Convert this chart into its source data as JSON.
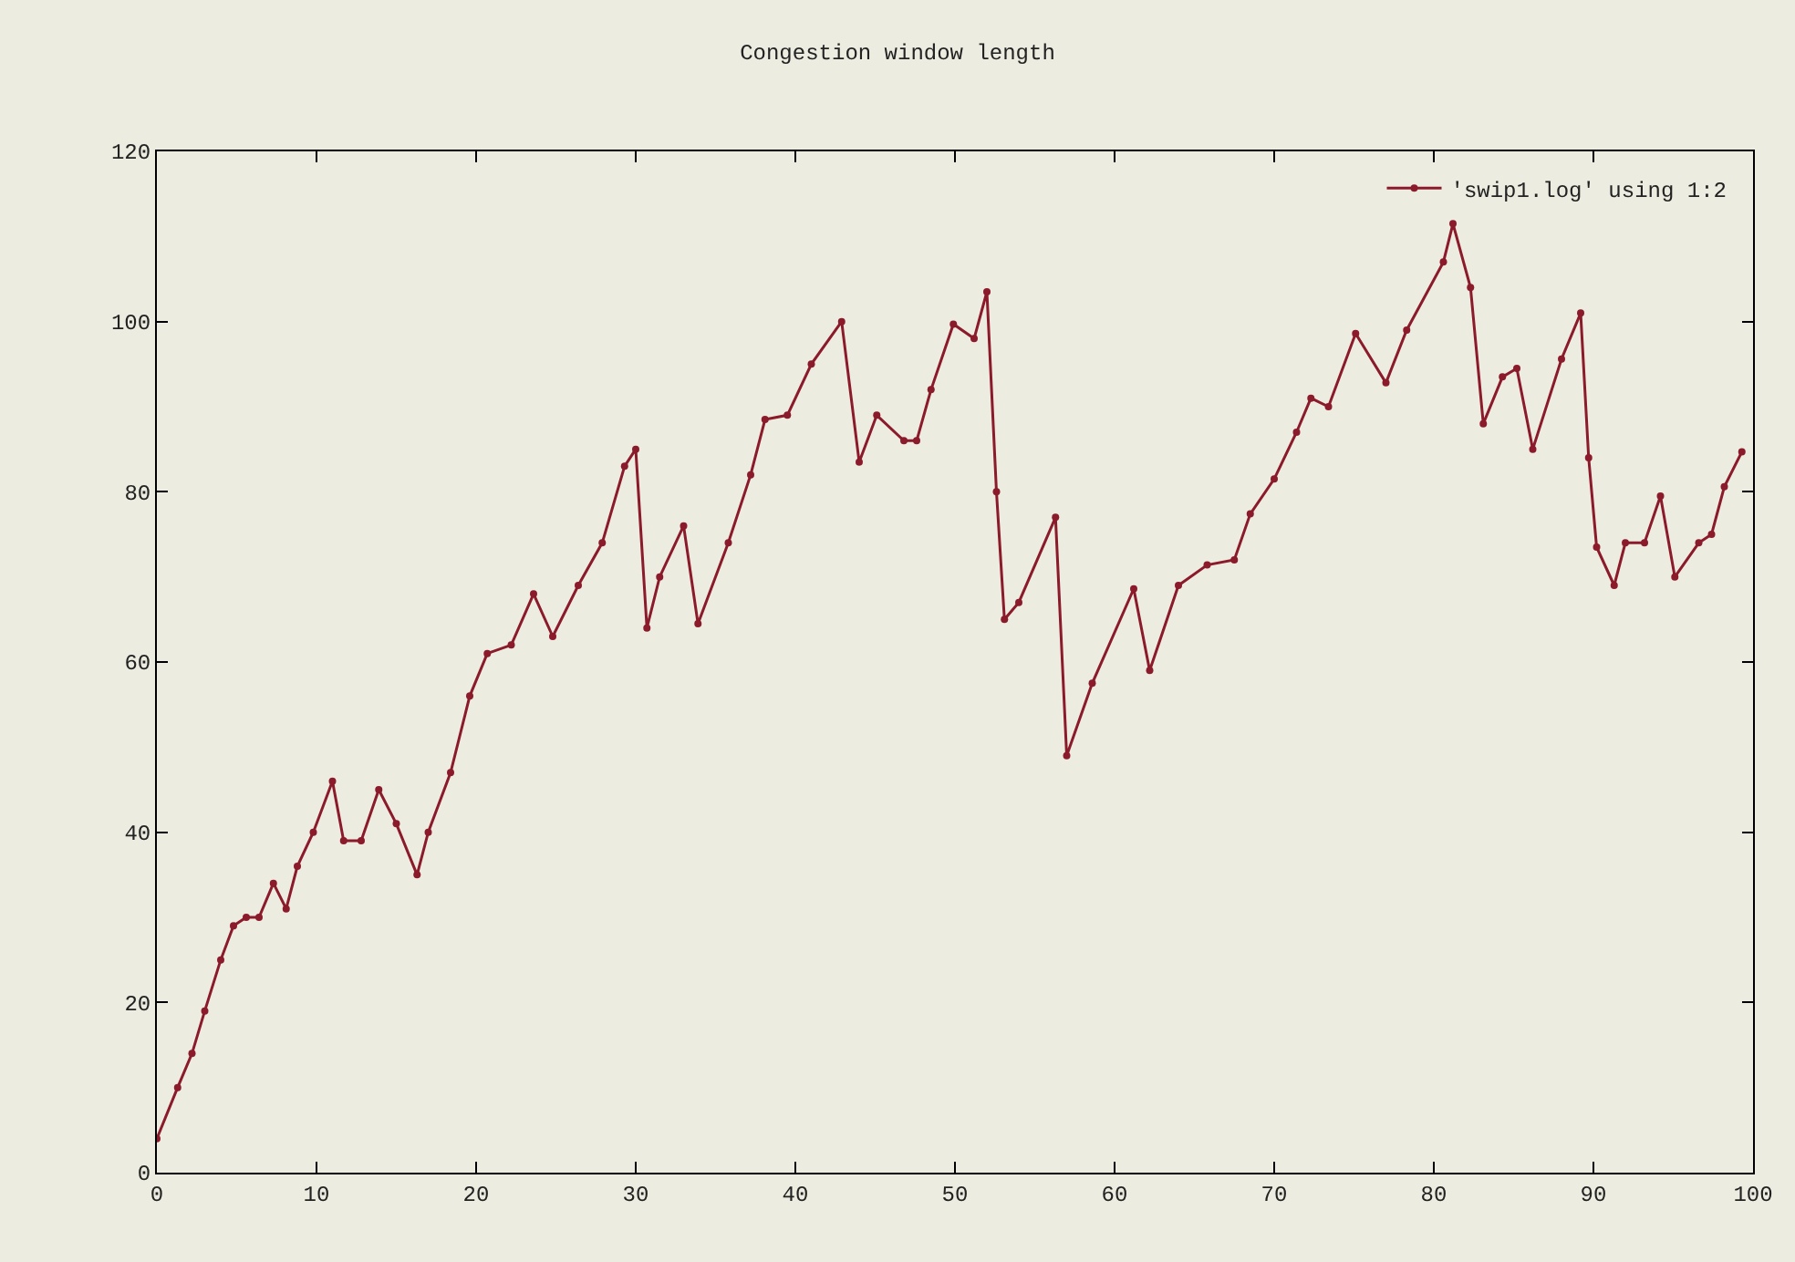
{
  "chart_data": {
    "type": "line",
    "title": "Congestion window length",
    "legend": "top right",
    "grid": false,
    "marker": "circle",
    "line_style": "solid",
    "xlim": [
      0,
      100
    ],
    "xticks": [
      0,
      10,
      20,
      30,
      40,
      50,
      60,
      70,
      80,
      90,
      100
    ],
    "ylim": [
      0,
      120
    ],
    "yticks": [
      0,
      20,
      40,
      60,
      80,
      100,
      120
    ],
    "series": [
      {
        "name": "'swip1.log' using 1:2",
        "color": "#8b1a2b",
        "x": [
          0,
          1.3,
          2.2,
          3,
          4,
          4.8,
          5.6,
          6.4,
          7.3,
          8.1,
          8.8,
          9.8,
          11,
          11.7,
          12.8,
          13.9,
          15,
          16.3,
          17,
          18.4,
          19.6,
          20.7,
          22.2,
          23.6,
          24.8,
          26.4,
          27.9,
          29.3,
          30,
          30.7,
          31.5,
          33,
          33.9,
          35.8,
          37.2,
          38.1,
          39.5,
          41,
          42.9,
          44,
          45.1,
          46.8,
          47.6,
          48.5,
          49.9,
          51.2,
          52,
          52.6,
          53.1,
          54,
          56.3,
          57,
          58.6,
          61.2,
          62.2,
          64,
          65.8,
          67.5,
          68.5,
          70,
          71.4,
          72.3,
          73.4,
          75.1,
          77,
          78.3,
          80.6,
          81.2,
          82.3,
          83.1,
          84.3,
          85.2,
          86.2,
          88,
          89.2,
          89.7,
          90.2,
          91.3,
          92,
          93.2,
          94.2,
          95.1,
          96.6,
          97.4,
          98.2,
          99.3
        ],
        "values": [
          4,
          10,
          14,
          19,
          25,
          29,
          30,
          30,
          34,
          31,
          36,
          40,
          46,
          39,
          39,
          45,
          41,
          35,
          40,
          47,
          56,
          61,
          62,
          68,
          63,
          69,
          74,
          83,
          85,
          64,
          70,
          76,
          64.5,
          74,
          82,
          88.5,
          89,
          95,
          100,
          83.5,
          89,
          86,
          86,
          92,
          99.7,
          98,
          103.5,
          80,
          65,
          67,
          77,
          49,
          57.5,
          68.6,
          59,
          69,
          71.4,
          72,
          77.4,
          81.5,
          87,
          91,
          90,
          98.6,
          92.8,
          99,
          107,
          111.5,
          104,
          88,
          93.5,
          94.5,
          85,
          95.6,
          101,
          84,
          73.5,
          69,
          74,
          74,
          79.5,
          70,
          74,
          75,
          80.6,
          84.7
        ]
      }
    ]
  }
}
